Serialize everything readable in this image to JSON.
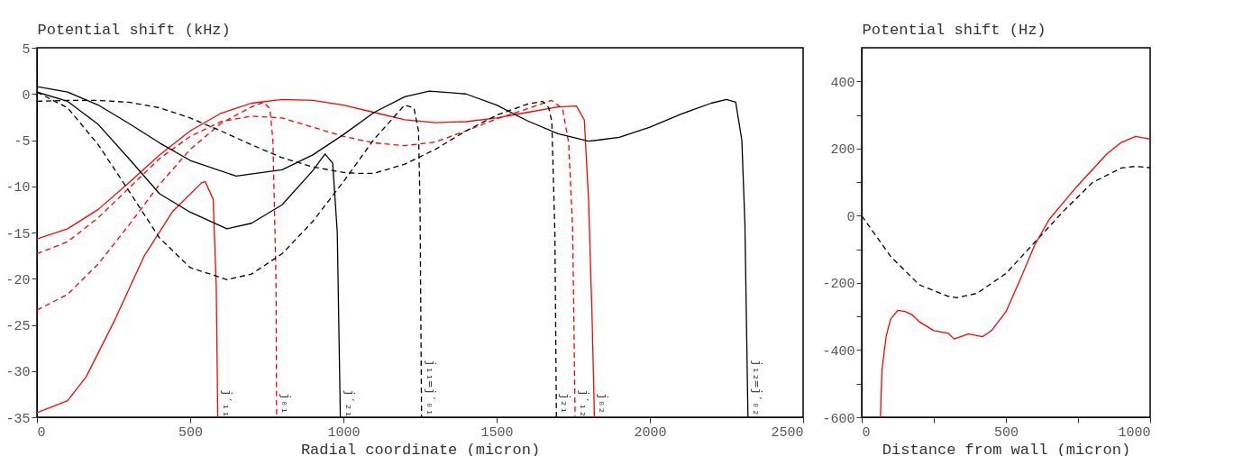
{
  "chart_data": [
    {
      "type": "line",
      "ylabel": "Potential shift (kHz)",
      "xlabel": "Radial coordinate (micron)",
      "xlim": [
        0,
        2500
      ],
      "xticks": [
        0,
        500,
        1000,
        1500,
        2000,
        2500
      ],
      "ylim": [
        -35,
        5
      ],
      "yticks": [
        -35,
        -30,
        -25,
        -20,
        -15,
        -10,
        -5,
        0,
        5
      ],
      "grid": false,
      "legend": false,
      "marker": "none",
      "series": [
        {
          "color": "#ff0000",
          "line_style": "solid",
          "x": [
            0,
            100,
            161,
            255,
            349,
            443,
            538,
            549,
            575,
            585,
            590
          ],
          "values": [
            -34.5,
            -33.2,
            -30.6,
            -24.4,
            -17.6,
            -12.7,
            -9.6,
            -9.5,
            -11.4,
            -20.7,
            -35
          ]
        },
        {
          "color": "#ff0000",
          "line_style": "dashed",
          "x": [
            0,
            100,
            200,
            300,
            400,
            500,
            600,
            700,
            740,
            760,
            770,
            780,
            782
          ],
          "values": [
            -23.4,
            -21.7,
            -18.4,
            -14.2,
            -9.8,
            -6.0,
            -3.2,
            -1.4,
            -0.9,
            -1.6,
            -5,
            -20,
            -35
          ]
        },
        {
          "color": "#ff0000",
          "line_style": "dashed",
          "x": [
            0,
            100,
            200,
            300,
            400,
            500,
            600,
            700,
            800,
            900,
            1000,
            1100,
            1200,
            1300,
            1400,
            1500,
            1600,
            1680,
            1715,
            1735,
            1748,
            1756
          ],
          "values": [
            -17.3,
            -16.0,
            -13.4,
            -10.2,
            -7.0,
            -4.6,
            -3.0,
            -2.4,
            -2.6,
            -3.6,
            -4.6,
            -5.3,
            -5.6,
            -5.2,
            -4.0,
            -2.7,
            -1.6,
            -0.7,
            -1.6,
            -5.3,
            -14.6,
            -35
          ]
        },
        {
          "color": "#ff0000",
          "line_style": "solid",
          "x": [
            0,
            100,
            200,
            300,
            400,
            500,
            600,
            700,
            800,
            900,
            1000,
            1100,
            1200,
            1300,
            1400,
            1500,
            1600,
            1700,
            1760,
            1786,
            1800,
            1812,
            1819
          ],
          "values": [
            -15.7,
            -14.6,
            -12.5,
            -9.6,
            -6.6,
            -4.0,
            -2.1,
            -1.0,
            -0.6,
            -0.7,
            -1.2,
            -2.0,
            -2.8,
            -3.1,
            -3.0,
            -2.6,
            -2.0,
            -1.4,
            -1.3,
            -2.8,
            -11.5,
            -25,
            -35
          ]
        },
        {
          "color": "#000000",
          "line_style": "solid",
          "x": [
            0,
            100,
            200,
            300,
            400,
            500,
            620,
            700,
            800,
            900,
            940,
            965,
            980,
            990
          ],
          "values": [
            0.2,
            -0.8,
            -3.3,
            -7.0,
            -10.8,
            -12.8,
            -14.6,
            -14.0,
            -12.0,
            -8.3,
            -6.5,
            -7.5,
            -15,
            -35
          ]
        },
        {
          "color": "#000000",
          "line_style": "dashed",
          "x": [
            0,
            100,
            200,
            300,
            400,
            500,
            620,
            700,
            800,
            900,
            1000,
            1100,
            1200,
            1230,
            1245,
            1250,
            1255
          ],
          "values": [
            0.2,
            -1.5,
            -5.5,
            -10.5,
            -15.6,
            -18.8,
            -20.1,
            -19.5,
            -17.3,
            -13.8,
            -9.5,
            -4.9,
            -1.2,
            -1.5,
            -4,
            -12,
            -35
          ]
        },
        {
          "color": "#000000",
          "line_style": "dashed",
          "x": [
            0,
            100,
            200,
            300,
            400,
            500,
            600,
            700,
            800,
            900,
            1000,
            1050,
            1100,
            1200,
            1300,
            1400,
            1500,
            1600,
            1650,
            1670,
            1680,
            1690,
            1695
          ],
          "values": [
            -0.8,
            -0.7,
            -0.7,
            -0.9,
            -1.5,
            -2.6,
            -4.0,
            -5.5,
            -6.9,
            -7.9,
            -8.5,
            -8.6,
            -8.6,
            -7.6,
            -6.0,
            -4.0,
            -2.3,
            -1.1,
            -0.8,
            -1.5,
            -3,
            -15,
            -35
          ]
        },
        {
          "color": "#000000",
          "line_style": "solid",
          "x": [
            0,
            100,
            200,
            300,
            400,
            500,
            650,
            800,
            900,
            1000,
            1100,
            1200,
            1280,
            1400,
            1500,
            1600,
            1700,
            1800,
            1830,
            1900,
            2000,
            2100,
            2200,
            2250,
            2280,
            2300,
            2310,
            2320
          ],
          "values": [
            0.8,
            0.2,
            -1.2,
            -3.2,
            -5.3,
            -7.2,
            -8.9,
            -8.2,
            -6.6,
            -4.4,
            -2.0,
            -0.3,
            0.3,
            0.0,
            -1.2,
            -2.9,
            -4.3,
            -5.1,
            -5.0,
            -4.7,
            -3.6,
            -2.2,
            -1.0,
            -0.6,
            -0.9,
            -5,
            -14,
            -35
          ]
        }
      ],
      "annotations": [
        {
          "text": "j′₁₁",
          "x": 590,
          "y": -33.5
        },
        {
          "text": "j₀₁",
          "x": 782,
          "y": -33.5
        },
        {
          "text": "j′₂₁",
          "x": 990,
          "y": -33.5
        },
        {
          "text": "j₁₁=j′₀₁",
          "x": 1255,
          "y": -31.8
        },
        {
          "text": "j₂₁",
          "x": 1695,
          "y": -33.5
        },
        {
          "text": "j′₁₂",
          "x": 1756,
          "y": -33.5
        },
        {
          "text": "j₀₂",
          "x": 1819,
          "y": -33.5
        },
        {
          "text": "j₁₂=j′₀₂",
          "x": 2320,
          "y": -31.8
        }
      ]
    },
    {
      "type": "line",
      "ylabel": "Potential shift (Hz)",
      "xlabel": "Distance from wall (micron)",
      "xlim": [
        0,
        1000
      ],
      "xticks": [
        0,
        {
          "value": 250,
          "label": null
        },
        500,
        {
          "value": 750,
          "label": null
        },
        1000
      ],
      "ylim": [
        -600,
        500
      ],
      "yticks": [
        -600,
        {
          "value": -500,
          "label": null
        },
        -400,
        {
          "value": -300,
          "label": null
        },
        -200,
        {
          "value": -100,
          "label": null
        },
        0,
        {
          "value": 100,
          "label": null
        },
        200,
        {
          "value": 300,
          "label": null
        },
        400
      ],
      "grid": false,
      "legend": false,
      "marker": "none",
      "series": [
        {
          "color": "#000000",
          "line_style": "dashed",
          "x": [
            0,
            100,
            200,
            300,
            330,
            400,
            500,
            600,
            700,
            800,
            900,
            950,
            1000
          ],
          "values": [
            0,
            -121,
            -206,
            -240,
            -244,
            -231,
            -172,
            -79,
            14,
            99,
            142,
            147,
            143
          ]
        },
        {
          "color": "#ff0000",
          "line_style": "solid",
          "x": [
            65,
            70,
            85,
            100,
            125,
            150,
            175,
            200,
            250,
            300,
            320,
            370,
            420,
            450,
            500,
            550,
            600,
            650,
            700,
            750,
            800,
            850,
            900,
            950,
            1000
          ],
          "values": [
            -600,
            -460,
            -358,
            -308,
            -282,
            -285,
            -295,
            -316,
            -342,
            -350,
            -367,
            -352,
            -360,
            -342,
            -286,
            -189,
            -87,
            -11,
            40,
            91,
            137,
            184,
            218,
            236,
            228
          ]
        }
      ]
    }
  ]
}
